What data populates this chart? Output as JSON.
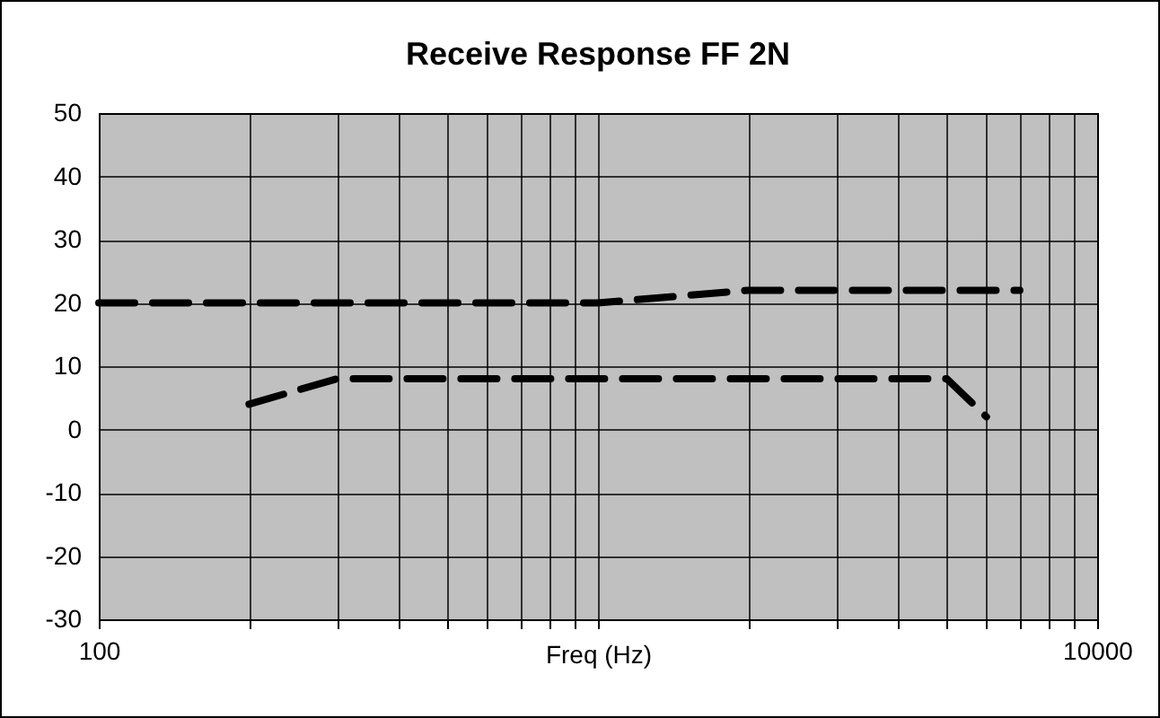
{
  "chart_data": {
    "type": "line",
    "title": "Receive Response FF 2N",
    "xlabel": "Freq (Hz)",
    "log": "x",
    "grid": true,
    "legend": false,
    "line_style": "dashed",
    "marker": "none",
    "xlim": [
      100,
      10000
    ],
    "xticks": [
      100,
      {
        "value": 200,
        "label": null
      },
      {
        "value": 300,
        "label": null
      },
      {
        "value": 400,
        "label": null
      },
      {
        "value": 500,
        "label": null
      },
      {
        "value": 600,
        "label": null
      },
      {
        "value": 700,
        "label": null
      },
      {
        "value": 800,
        "label": null
      },
      {
        "value": 900,
        "label": null
      },
      {
        "value": 1000,
        "label": null
      },
      {
        "value": 2000,
        "label": null
      },
      {
        "value": 3000,
        "label": null
      },
      {
        "value": 4000,
        "label": null
      },
      {
        "value": 5000,
        "label": null
      },
      {
        "value": 6000,
        "label": null
      },
      {
        "value": 7000,
        "label": null
      },
      {
        "value": 8000,
        "label": null
      },
      {
        "value": 9000,
        "label": null
      },
      10000
    ],
    "ylim": [
      -30,
      50
    ],
    "yticks": [
      -30,
      -20,
      -10,
      0,
      10,
      20,
      30,
      40,
      50
    ],
    "series": [
      {
        "color": "#000000",
        "x": [
          100,
          1000,
          2000,
          7000
        ],
        "values": [
          20,
          20,
          22,
          22
        ]
      },
      {
        "color": "#000000",
        "x": [
          200,
          300,
          5000,
          6000
        ],
        "values": [
          4,
          8,
          8,
          2
        ]
      }
    ]
  }
}
